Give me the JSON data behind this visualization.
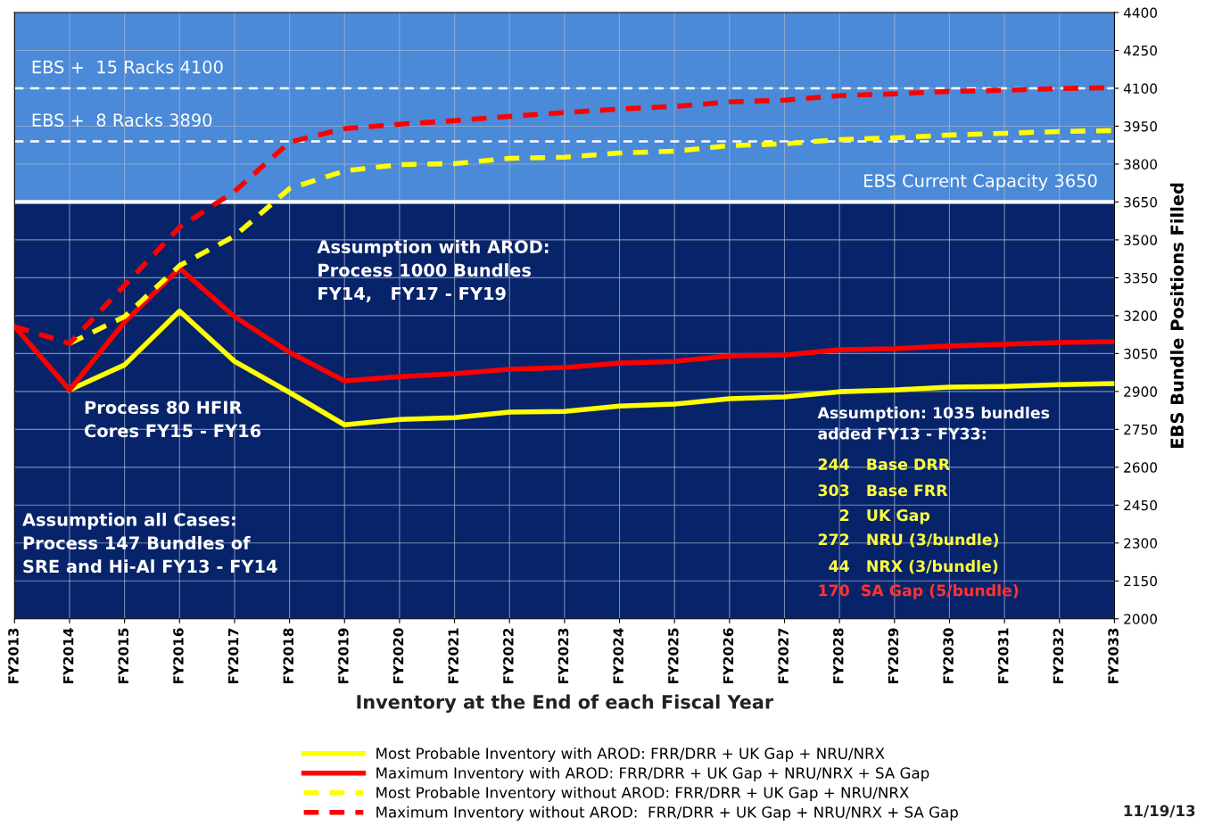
{
  "chart_data": {
    "type": "line",
    "xlabel": "Inventory at the End of each Fiscal Year",
    "ylabel": "EBS Bundle Positions Filled",
    "categories": [
      "FY2013",
      "FY2014",
      "FY2015",
      "FY2016",
      "FY2017",
      "FY2018",
      "FY2019",
      "FY2020",
      "FY2021",
      "FY2022",
      "FY2023",
      "FY2024",
      "FY2025",
      "FY2026",
      "FY2027",
      "FY2028",
      "FY2029",
      "FY2030",
      "FY2031",
      "FY2032",
      "FY2033"
    ],
    "series": [
      {
        "name": "Most Probable Inventory with AROD: FRR/DRR + UK Gap + NRU/NRX",
        "color": "#ffff00",
        "line_style": "solid",
        "values": [
          null,
          2906,
          3005,
          3218,
          3019,
          2896,
          2768,
          2789,
          2796,
          2818,
          2821,
          2842,
          2850,
          2871,
          2878,
          2899,
          2906,
          2917,
          2920,
          2927,
          2931
        ]
      },
      {
        "name": "Maximum Inventory with AROD: FRR/DRR + UK Gap + NRU/NRX + SA Gap",
        "color": "#ff0000",
        "line_style": "solid",
        "values": [
          3157,
          2906,
          3175,
          3388,
          3196,
          3055,
          2942,
          2959,
          2970,
          2988,
          2995,
          3012,
          3019,
          3041,
          3044,
          3065,
          3069,
          3080,
          3087,
          3094,
          3097
        ]
      },
      {
        "name": "Most Probable Inventory without AROD: FRR/DRR + UK Gap + NRU/NRX",
        "color": "#ffff00",
        "line_style": "dashed",
        "values": [
          null,
          3090,
          3196,
          3398,
          3515,
          3703,
          3773,
          3798,
          3802,
          3823,
          3827,
          3844,
          3851,
          3873,
          3880,
          3897,
          3904,
          3915,
          3922,
          3929,
          3933
        ]
      },
      {
        "name": "Maximum Inventory without AROD:  FRR/DRR + UK Gap + NRU/NRX + SA Gap",
        "color": "#ff0000",
        "line_style": "dashed",
        "values": [
          3157,
          3090,
          3320,
          3550,
          3692,
          3887,
          3940,
          3958,
          3972,
          3989,
          4004,
          4018,
          4028,
          4046,
          4053,
          4071,
          4078,
          4088,
          4092,
          4099,
          4103
        ]
      }
    ],
    "ylim": [
      2000,
      4400
    ],
    "yticks": [
      2000,
      2150,
      2300,
      2450,
      2600,
      2750,
      2900,
      3050,
      3200,
      3350,
      3500,
      3650,
      3800,
      3950,
      4100,
      4250,
      4400
    ],
    "grid": true,
    "legend": "bottom",
    "marker": "none",
    "bands": [
      {
        "axis": "y",
        "from": 3650,
        "to": 4400,
        "color": "#4a8ad8"
      }
    ],
    "ref_lines": [
      {
        "axis": "y",
        "value": 4100,
        "label": "EBS +  15 Racks 4100",
        "color": "#ffffff",
        "line_style": "dashed"
      },
      {
        "axis": "y",
        "value": 3890,
        "label": "EBS +  8 Racks 3890",
        "color": "#ffffff",
        "line_style": "dashed"
      },
      {
        "axis": "y",
        "value": 3650,
        "label": "EBS Current Capacity 3650",
        "color": "#ffffff",
        "line_style": "solid"
      }
    ],
    "annotations": [
      "Assumption with AROD:\nProcess 1000 Bundles\nFY14,   FY17 - FY19",
      "Process 80 HFIR\nCores FY15 - FY16",
      "Assumption all Cases:\nProcess 147 Bundles of\nSRE and Hi-Al FY13 - FY14",
      "Assumption: 1035 bundles\nadded FY13 - FY33:",
      "244   Base DRR",
      "303   Base FRR",
      "    2   UK Gap",
      "272   NRU (3/bundle)",
      "  44   NRX (3/bundle)",
      "170  SA Gap (5/bundle)",
      "11/19/13"
    ]
  }
}
